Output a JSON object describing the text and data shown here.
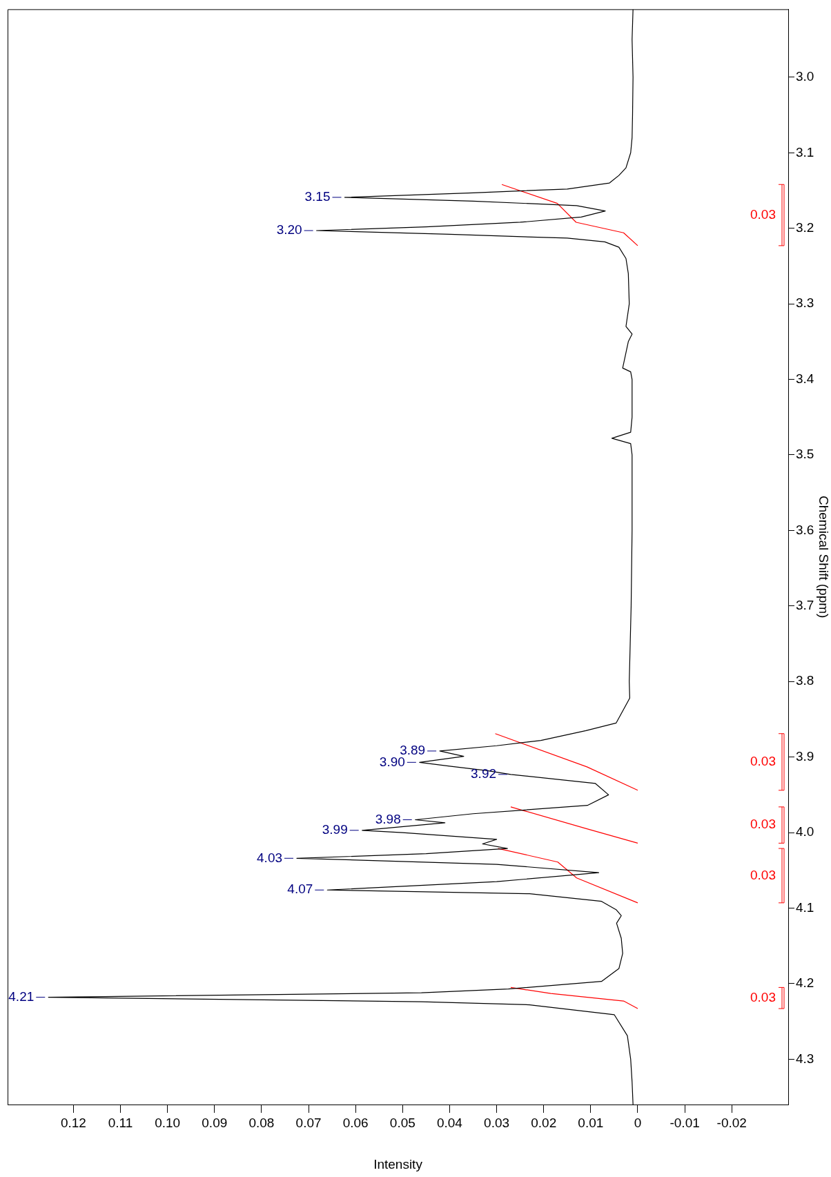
{
  "chart_data": {
    "type": "line",
    "xlabel": "Intensity",
    "ylabel": "Chemical Shift (ppm)",
    "xlim": [
      0.134,
      -0.032
    ],
    "ylim": [
      4.36,
      2.91
    ],
    "marker": "none",
    "xticks": [
      -0.02,
      -0.01,
      0,
      0.01,
      0.02,
      0.03,
      0.04,
      0.05,
      0.06,
      0.07,
      0.08,
      0.09,
      {
        "value": 0.1,
        "label": "0.10"
      },
      0.11,
      0.12
    ],
    "yticks": [
      {
        "value": 3,
        "label": "3.0"
      },
      3.1,
      3.2,
      3.3,
      3.4,
      3.5,
      3.6,
      3.7,
      3.8,
      3.9,
      {
        "value": 4,
        "label": "4.0"
      },
      4.1,
      4.2,
      4.3
    ],
    "series": [
      {
        "color": "#000000",
        "values": [
          2.91,
          2.95,
          3.0,
          3.05,
          3.08,
          3.1,
          3.12,
          3.13,
          3.14,
          3.148,
          3.153,
          3.159,
          3.164,
          3.17,
          3.177,
          3.185,
          3.192,
          3.198,
          3.203,
          3.208,
          3.213,
          3.218,
          3.225,
          3.24,
          3.26,
          3.3,
          3.33,
          3.34,
          3.35,
          3.385,
          3.39,
          3.4,
          3.45,
          3.47,
          3.478,
          3.485,
          3.5,
          3.6,
          3.7,
          3.75,
          3.8,
          3.822,
          3.855,
          3.865,
          3.878,
          3.885,
          3.892,
          3.899,
          3.907,
          3.912,
          3.918,
          3.923,
          3.935,
          3.95,
          3.964,
          3.975,
          3.983,
          3.987,
          3.997,
          4.0,
          4.009,
          4.015,
          4.021,
          4.028,
          4.034,
          4.042,
          4.053,
          4.065,
          4.076,
          4.081,
          4.091,
          4.102,
          4.11,
          4.12,
          4.14,
          4.16,
          4.18,
          4.197,
          4.207,
          4.212,
          4.218,
          4.224,
          4.228,
          4.241,
          4.269,
          4.3,
          4.33,
          4.36
        ],
        "x": [
          0.001,
          0.0012,
          0.001,
          0.0011,
          0.0012,
          0.0015,
          0.0025,
          0.004,
          0.006,
          0.015,
          0.035,
          0.0623,
          0.035,
          0.013,
          0.0069,
          0.012,
          0.025,
          0.045,
          0.0683,
          0.04,
          0.015,
          0.007,
          0.004,
          0.0025,
          0.002,
          0.0018,
          0.0025,
          0.0012,
          0.002,
          0.0032,
          0.0015,
          0.0012,
          0.0012,
          0.0015,
          0.0055,
          0.0015,
          0.0012,
          0.0012,
          0.0014,
          0.0016,
          0.0018,
          0.0017,
          0.0046,
          0.011,
          0.0206,
          0.03,
          0.0421,
          0.037,
          0.0464,
          0.04,
          0.032,
          0.027,
          0.009,
          0.0062,
          0.0107,
          0.035,
          0.0473,
          0.041,
          0.0586,
          0.05,
          0.03,
          0.033,
          0.0277,
          0.045,
          0.0725,
          0.03,
          0.0083,
          0.03,
          0.066,
          0.023,
          0.0077,
          0.0046,
          0.0035,
          0.0045,
          0.0035,
          0.0032,
          0.004,
          0.0077,
          0.0275,
          0.046,
          0.1253,
          0.046,
          0.023,
          0.005,
          0.0022,
          0.0015,
          0.0012,
          0.001
        ]
      },
      {
        "color": "#ff0000",
        "values": [
          3.142,
          3.167,
          3.192,
          3.206,
          3.223
        ],
        "x": [
          0.0289,
          0.0171,
          0.0131,
          0.003,
          0
        ]
      },
      {
        "color": "#ff0000",
        "values": [
          3.869,
          3.913,
          3.944
        ],
        "x": [
          0.0303,
          0.0108,
          0
        ]
      },
      {
        "color": "#ff0000",
        "values": [
          3.966,
          3.995,
          4.014
        ],
        "x": [
          0.027,
          0.0108,
          0
        ]
      },
      {
        "color": "#ff0000",
        "values": [
          4.021,
          4.039,
          4.06,
          4.093
        ],
        "x": [
          0.0297,
          0.017,
          0.013,
          0
        ]
      },
      {
        "color": "#ff0000",
        "values": [
          4.205,
          4.213,
          4.223,
          4.233
        ],
        "x": [
          0.027,
          0.0185,
          0.003,
          0
        ]
      }
    ],
    "annotations": [
      {
        "text": "3.15",
        "y": 3.159,
        "x": 0.0623
      },
      {
        "text": "3.20",
        "y": 3.203,
        "x": 0.0683
      },
      {
        "text": "3.89",
        "y": 3.892,
        "x": 0.0421
      },
      {
        "text": "3.90",
        "y": 3.907,
        "x": 0.0464
      },
      {
        "text": "3.92",
        "y": 3.923,
        "x": 0.027
      },
      {
        "text": "3.98",
        "y": 3.983,
        "x": 0.0473
      },
      {
        "text": "3.99",
        "y": 3.997,
        "x": 0.0586
      },
      {
        "text": "4.03",
        "y": 4.034,
        "x": 0.0725
      },
      {
        "text": "4.07",
        "y": 4.076,
        "x": 0.066
      },
      {
        "text": "4.21",
        "y": 4.218,
        "x": 0.1253
      },
      "0.03",
      "0.03",
      "0.03",
      "0.03",
      "0.03"
    ]
  }
}
